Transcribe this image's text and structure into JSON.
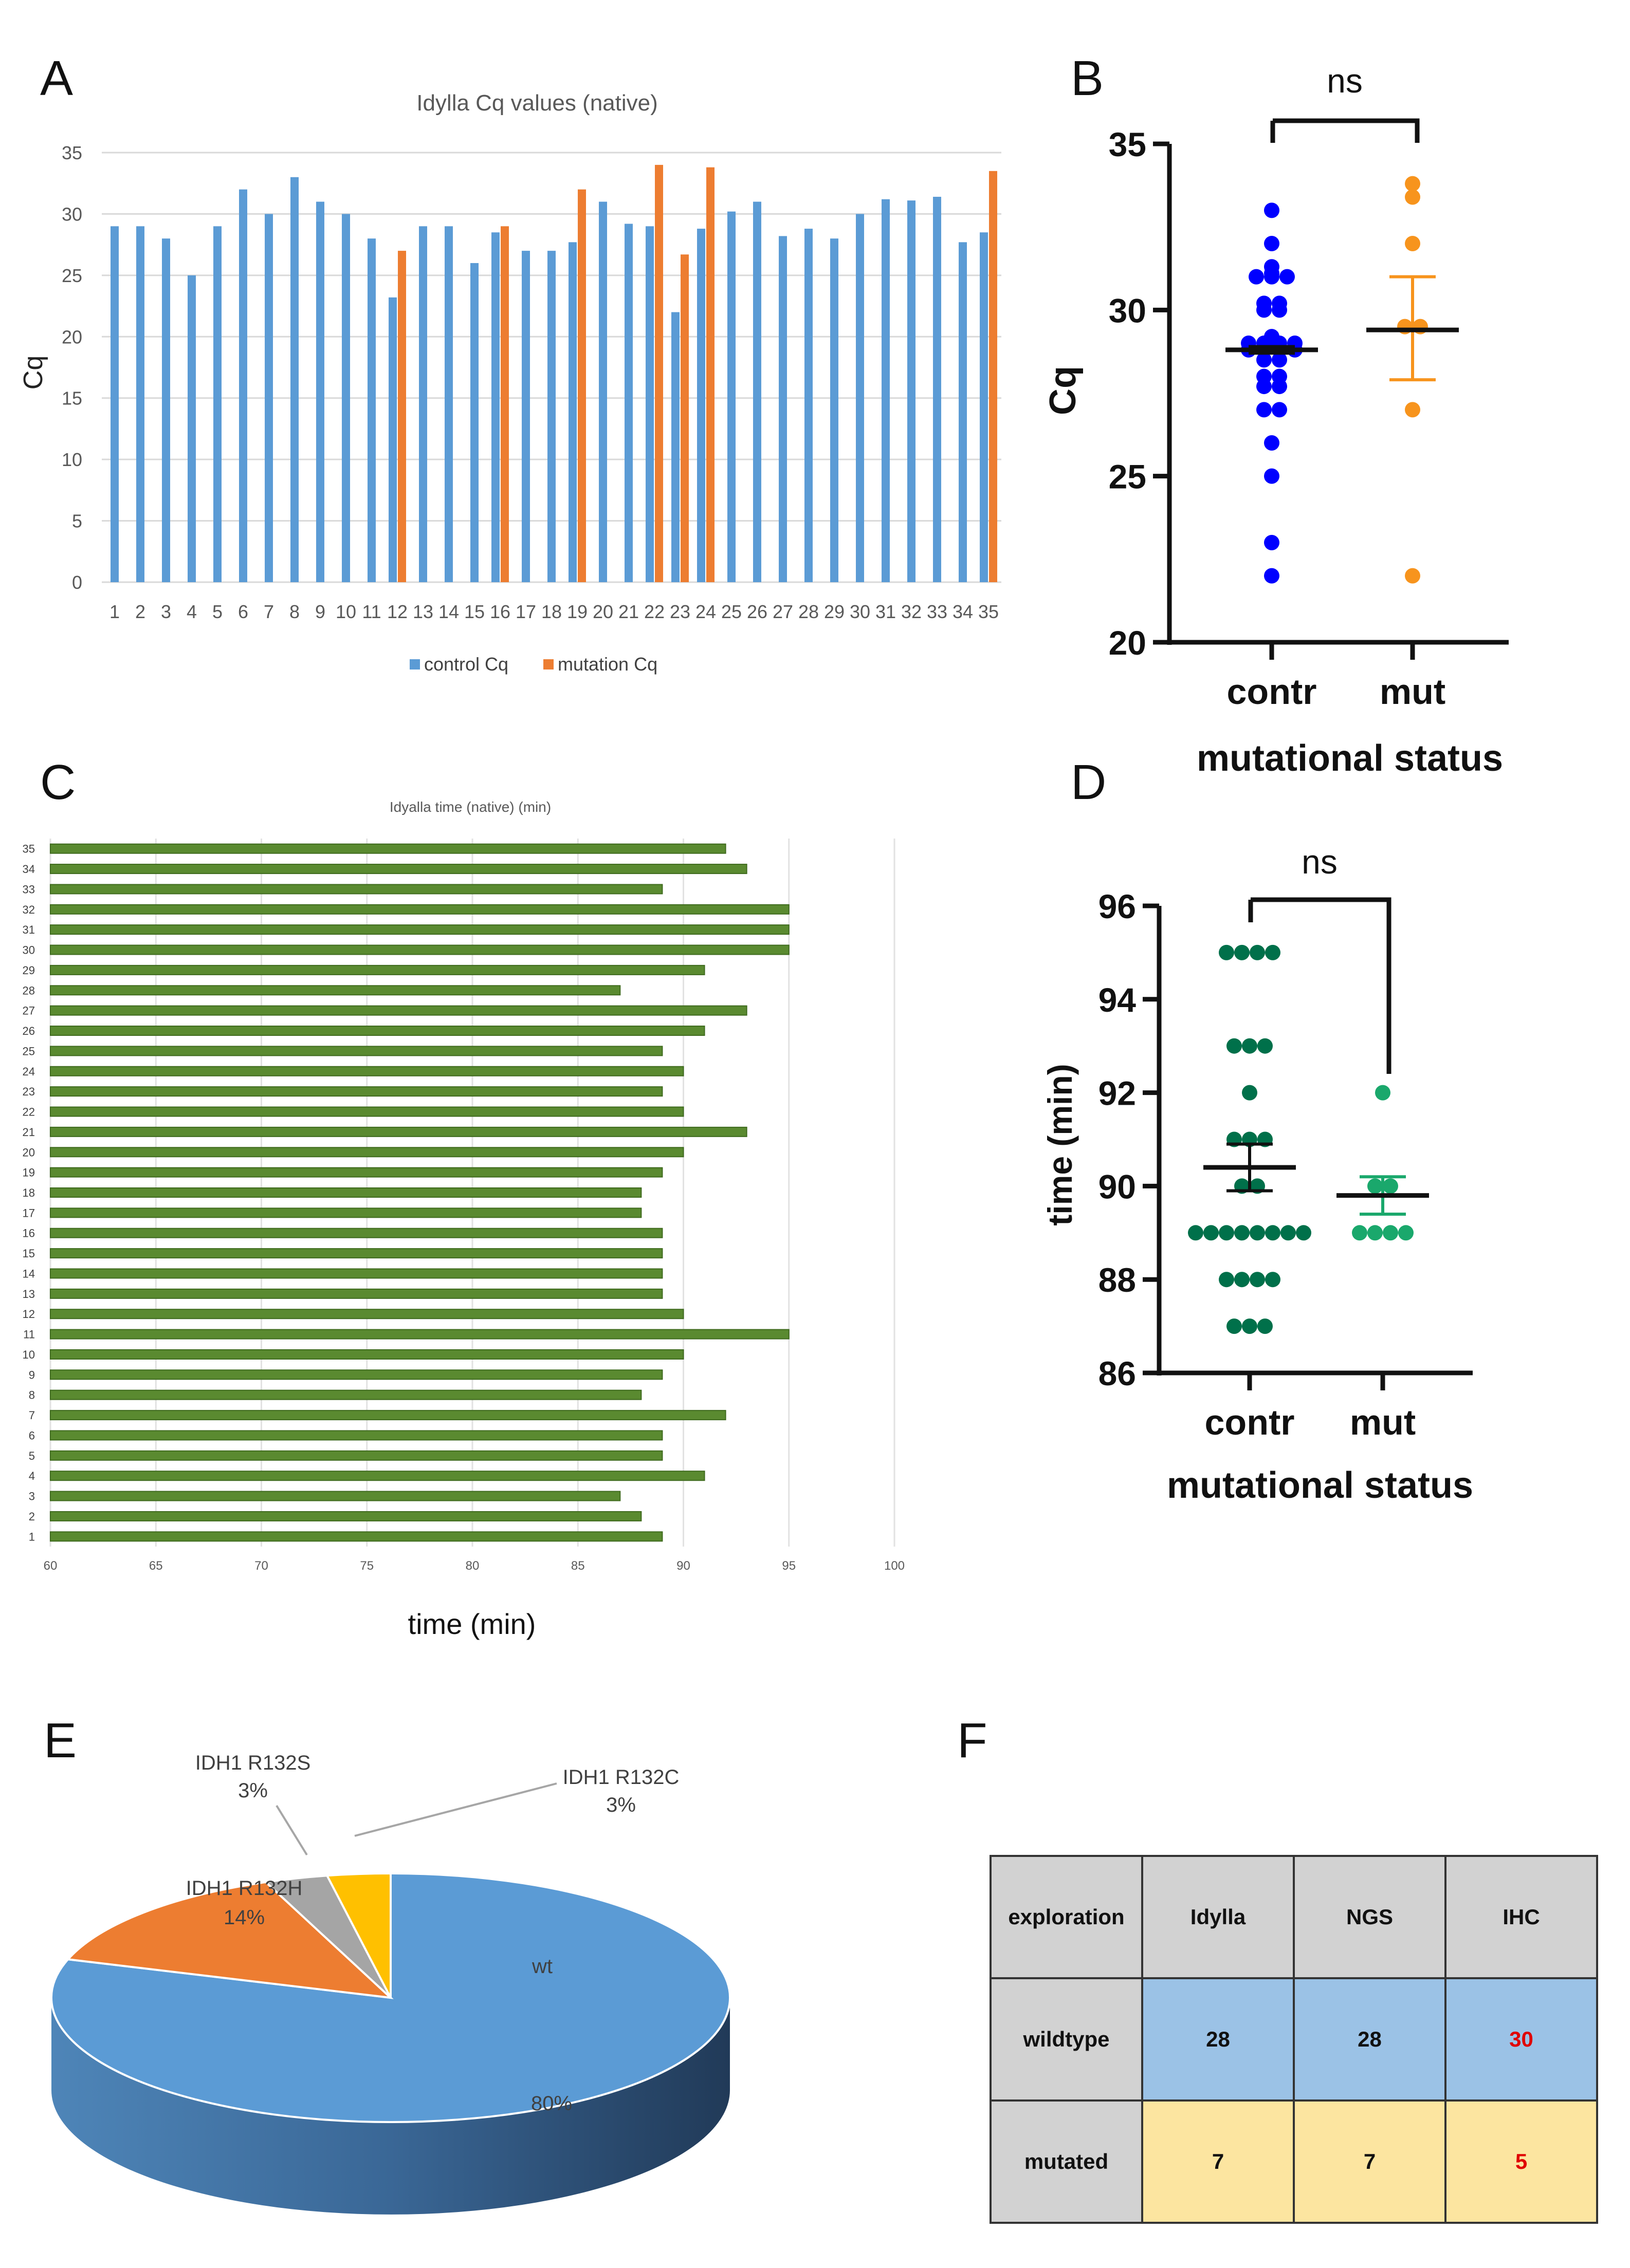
{
  "panels": {
    "a": "A",
    "b": "B",
    "c": "C",
    "d": "D",
    "e": "E",
    "f": "F"
  },
  "colors": {
    "control": "#5b9bd5",
    "mutation": "#ed7d31",
    "green_bar": "#5a8a30",
    "contr_dot_b": "#0000ff",
    "mut_dot_b": "#f7941d",
    "contr_dot_d": "#00704a",
    "mut_dot_d": "#1aa86c"
  },
  "chart_data": [
    {
      "panel": "A",
      "type": "bar",
      "title": "Idylla Cq values (native)",
      "xlabel": "",
      "ylabel": "Cq",
      "ylim": [
        0,
        35
      ],
      "yticks": [
        0,
        5,
        10,
        15,
        20,
        25,
        30,
        35
      ],
      "categories": [
        "1",
        "2",
        "3",
        "4",
        "5",
        "6",
        "7",
        "8",
        "9",
        "10",
        "11",
        "12",
        "13",
        "14",
        "15",
        "16",
        "17",
        "18",
        "19",
        "20",
        "21",
        "22",
        "23",
        "24",
        "25",
        "26",
        "27",
        "28",
        "29",
        "30",
        "31",
        "32",
        "33",
        "34",
        "35"
      ],
      "series": [
        {
          "name": "control Cq",
          "values": [
            29,
            29,
            28,
            25,
            29,
            32,
            30,
            33,
            31,
            30,
            28,
            23.2,
            29,
            29,
            26,
            28.5,
            27,
            27,
            27.7,
            31,
            29.2,
            29,
            22,
            28.8,
            30.2,
            31,
            28.2,
            28.8,
            28,
            30,
            31.2,
            31.1,
            31.4,
            27.7,
            28.5
          ]
        },
        {
          "name": "mutation Cq",
          "values": [
            null,
            null,
            null,
            null,
            null,
            null,
            null,
            null,
            null,
            null,
            null,
            27,
            null,
            null,
            null,
            29,
            null,
            null,
            32,
            null,
            null,
            34,
            26.7,
            33.8,
            null,
            null,
            null,
            null,
            null,
            null,
            null,
            null,
            null,
            null,
            33.5
          ]
        }
      ],
      "legend": [
        "control Cq",
        "mutation Cq"
      ],
      "legend_position": "bottom"
    },
    {
      "panel": "B",
      "type": "scatter",
      "xlabel": "mutational status",
      "ylabel": "Cq",
      "categories": [
        "contr",
        "mut"
      ],
      "ylim": [
        20,
        35
      ],
      "yticks": [
        20,
        25,
        30,
        35
      ],
      "significance": "ns",
      "groups": [
        {
          "name": "contr",
          "values": [
            33,
            32,
            31.3,
            31.1,
            31,
            31,
            31,
            30.2,
            30.2,
            30,
            30,
            29.2,
            29,
            29,
            29,
            29,
            28.9,
            28.8,
            28.8,
            28.8,
            28.8,
            28.5,
            28.5,
            28,
            28,
            27.7,
            27.7,
            27,
            27,
            26,
            25,
            23,
            22
          ],
          "mean": 28.8,
          "sem_low": 28.7,
          "sem_high": 28.9
        },
        {
          "name": "mut",
          "values": [
            33.8,
            33.4,
            32,
            29.5,
            29.5,
            27,
            22
          ],
          "mean": 29.4,
          "sem_low": 27.9,
          "sem_high": 31.0
        }
      ]
    },
    {
      "panel": "C",
      "type": "bar",
      "orientation": "horizontal",
      "title": "Idyalla time (native) (min)",
      "xlabel": "time (min)",
      "ylabel": "",
      "xlim": [
        60,
        100
      ],
      "xticks": [
        60,
        65,
        70,
        75,
        80,
        85,
        90,
        95,
        100
      ],
      "categories": [
        "1",
        "2",
        "3",
        "4",
        "5",
        "6",
        "7",
        "8",
        "9",
        "10",
        "11",
        "12",
        "13",
        "14",
        "15",
        "16",
        "17",
        "18",
        "19",
        "20",
        "21",
        "22",
        "23",
        "24",
        "25",
        "26",
        "27",
        "28",
        "29",
        "30",
        "31",
        "32",
        "33",
        "34",
        "35"
      ],
      "values": [
        89,
        88,
        87,
        91,
        89,
        89,
        92,
        88,
        89,
        90,
        95,
        90,
        89,
        89,
        89,
        89,
        88,
        88,
        89,
        90,
        93,
        90,
        89,
        90,
        89,
        91,
        93,
        87,
        91,
        95,
        95,
        95,
        89,
        93,
        92
      ]
    },
    {
      "panel": "D",
      "type": "scatter",
      "xlabel": "mutational status",
      "ylabel": "time (min)",
      "categories": [
        "contr",
        "mut"
      ],
      "ylim": [
        86,
        96
      ],
      "yticks": [
        86,
        88,
        90,
        92,
        94,
        96
      ],
      "significance": "ns",
      "groups": [
        {
          "name": "contr",
          "values": [
            95,
            95,
            95,
            95,
            93,
            93,
            93,
            92,
            91,
            91,
            91,
            90,
            90,
            89,
            89,
            89,
            89,
            89,
            89,
            89,
            89,
            88,
            88,
            88,
            88,
            87,
            87,
            87
          ],
          "mean": 90.4,
          "sem_low": 89.9,
          "sem_high": 90.9
        },
        {
          "name": "mut",
          "values": [
            92,
            90,
            90,
            89,
            89,
            89,
            89
          ],
          "mean": 89.8,
          "sem_low": 89.4,
          "sem_high": 90.2
        }
      ]
    },
    {
      "panel": "E",
      "type": "pie",
      "slices": [
        {
          "label": "wt",
          "value": 80,
          "pct": "80%",
          "color": "#5b9bd5"
        },
        {
          "label": "IDH1 R132H",
          "value": 14,
          "pct": "14%",
          "color": "#ed7d31"
        },
        {
          "label": "IDH1 R132S",
          "value": 3,
          "pct": "3%",
          "color": "#a5a5a5"
        },
        {
          "label": "IDH1 R132C",
          "value": 3,
          "pct": "3%",
          "color": "#ffc000"
        }
      ]
    },
    {
      "panel": "F",
      "type": "table",
      "header": [
        "exploration",
        "Idylla",
        "NGS",
        "IHC"
      ],
      "rows": [
        {
          "label": "wildtype",
          "cells": [
            "28",
            "28",
            "30"
          ]
        },
        {
          "label": "mutated",
          "cells": [
            "7",
            "7",
            "5"
          ]
        }
      ]
    }
  ]
}
